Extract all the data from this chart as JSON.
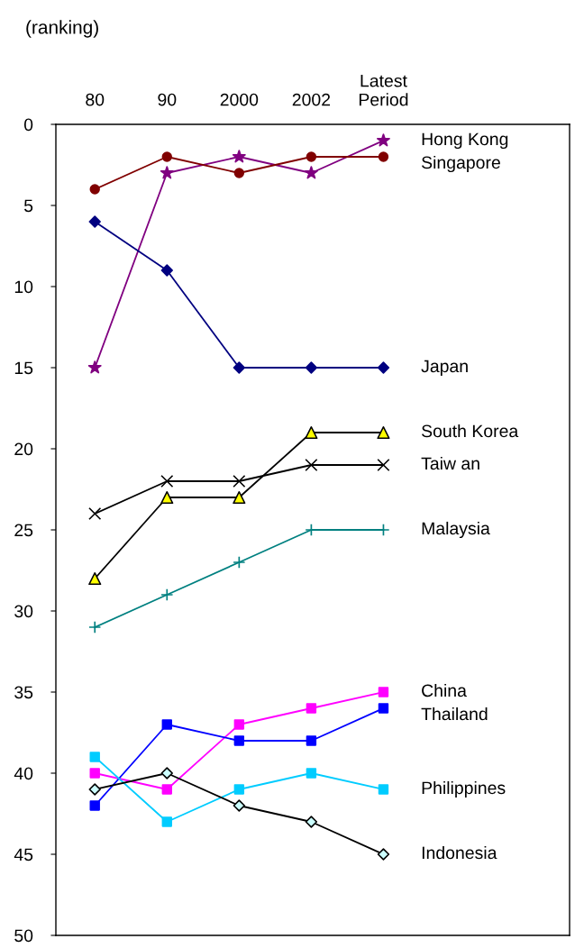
{
  "chart_data": {
    "type": "line",
    "ylabel": "(ranking)",
    "categories": [
      "80",
      "90",
      "2000",
      "2002",
      "Latest\nPeriod"
    ],
    "ylim": [
      50,
      0
    ],
    "yticks": [
      0,
      5,
      10,
      15,
      20,
      25,
      30,
      35,
      40,
      45,
      50
    ],
    "grid": false,
    "legend": "right",
    "series": [
      {
        "name": "Hong Kong",
        "color": "#800080",
        "marker": "star",
        "values": [
          15,
          3,
          2,
          3,
          1
        ]
      },
      {
        "name": "Singapore",
        "color": "#800000",
        "marker": "circle",
        "values": [
          4,
          2,
          3,
          2,
          2
        ]
      },
      {
        "name": "Japan",
        "color": "#000080",
        "marker": "diamond",
        "values": [
          6,
          9,
          15,
          15,
          15
        ]
      },
      {
        "name": "South Korea",
        "color": "#000000",
        "colors": [
          "#ffff00",
          "#ffff00",
          "#ffff00",
          "#ffff00",
          "#ffff00"
        ],
        "marker": "triangle",
        "values": [
          28,
          23,
          23,
          19,
          19
        ]
      },
      {
        "name": "Taiw an",
        "color": "#000000",
        "marker": "cross",
        "values": [
          24,
          22,
          22,
          21,
          21
        ]
      },
      {
        "name": "Malaysia",
        "color": "#008080",
        "marker": "plus",
        "values": [
          31,
          29,
          27,
          25,
          25
        ]
      },
      {
        "name": "China",
        "color": "#ff00ff",
        "marker": "square",
        "values": [
          40,
          41,
          37,
          36,
          35
        ]
      },
      {
        "name": "Thailand",
        "color": "#0000ff",
        "marker": "square",
        "values": [
          42,
          37,
          38,
          38,
          36
        ]
      },
      {
        "name": "Philippines",
        "color": "#00ccff",
        "marker": "square",
        "values": [
          39,
          43,
          41,
          40,
          41
        ]
      },
      {
        "name": "Indonesia",
        "color": "#000000",
        "colors": [
          "#ccffff",
          "#ccffff",
          "#ccffff",
          "#ccffff",
          "#ccffff"
        ],
        "marker": "diamond",
        "values": [
          41,
          40,
          42,
          43,
          45
        ]
      }
    ]
  }
}
